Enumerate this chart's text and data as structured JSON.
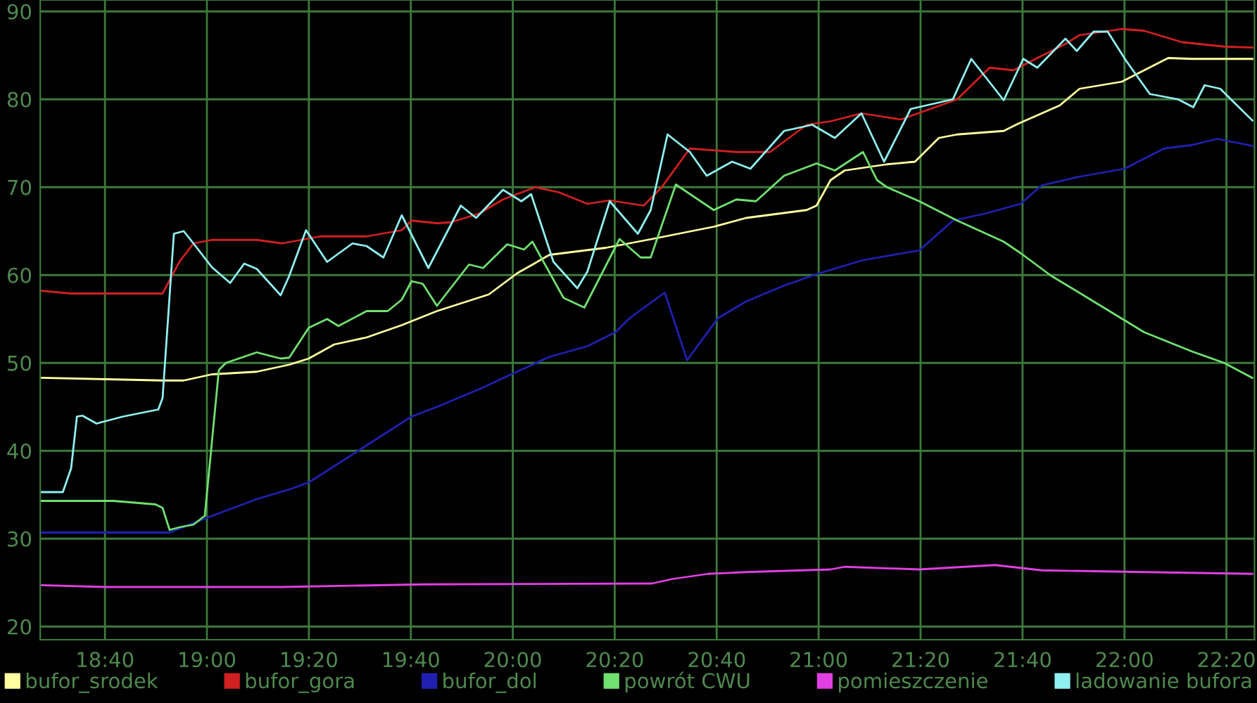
{
  "chart_data": {
    "type": "line",
    "xlim": [
      18.455,
      22.425
    ],
    "ylim": [
      18.5,
      91.3
    ],
    "xticks": [
      {
        "value": 18.6667,
        "label": "18:40"
      },
      {
        "value": 19.0,
        "label": "19:00"
      },
      {
        "value": 19.3333,
        "label": "19:20"
      },
      {
        "value": 19.6667,
        "label": "19:40"
      },
      {
        "value": 20.0,
        "label": "20:00"
      },
      {
        "value": 20.3333,
        "label": "20:20"
      },
      {
        "value": 20.6667,
        "label": "20:40"
      },
      {
        "value": 21.0,
        "label": "21:00"
      },
      {
        "value": 21.3333,
        "label": "21:20"
      },
      {
        "value": 21.6667,
        "label": "21:40"
      },
      {
        "value": 22.0,
        "label": "22:00"
      },
      {
        "value": 22.3333,
        "label": "22:20"
      }
    ],
    "yticks": [
      20,
      30,
      40,
      50,
      60,
      70,
      80,
      90
    ],
    "grid": true,
    "legend": "bottom",
    "marker": "none",
    "line_style": "solid",
    "series": [
      {
        "name": "bufor_srodek",
        "color": "#ffffa0",
        "x": [
          18.46,
          18.855,
          18.924,
          19.016,
          19.163,
          19.269,
          19.333,
          19.416,
          19.522,
          19.637,
          19.752,
          19.922,
          20.014,
          20.12,
          20.304,
          20.455,
          20.657,
          20.763,
          20.961,
          20.993,
          21.039,
          21.085,
          21.223,
          21.315,
          21.393,
          21.453,
          21.605,
          21.651,
          21.788,
          21.853,
          21.991,
          22.064,
          22.143,
          22.221,
          22.418
        ],
        "values": [
          48.3,
          48.0,
          48.0,
          48.7,
          49.0,
          49.8,
          50.5,
          52.1,
          52.9,
          54.3,
          55.9,
          57.8,
          60.2,
          62.3,
          63.1,
          64.1,
          65.5,
          66.5,
          67.4,
          67.9,
          70.8,
          71.9,
          72.6,
          72.9,
          75.6,
          76.0,
          76.4,
          77.2,
          79.3,
          81.2,
          82.0,
          83.3,
          84.7,
          84.6,
          84.6
        ]
      },
      {
        "name": "bufor_gora",
        "color": "#d02020",
        "x": [
          18.46,
          18.556,
          18.855,
          18.91,
          18.956,
          19.016,
          19.163,
          19.246,
          19.37,
          19.522,
          19.637,
          19.669,
          19.752,
          19.798,
          19.89,
          19.968,
          20.074,
          20.152,
          20.244,
          20.317,
          20.428,
          20.487,
          20.579,
          20.731,
          20.841,
          20.961,
          21.039,
          21.14,
          21.214,
          21.269,
          21.453,
          21.559,
          21.637,
          21.715,
          21.807,
          21.853,
          21.991,
          22.064,
          22.188,
          22.326,
          22.418
        ],
        "values": [
          58.2,
          57.9,
          57.9,
          61.5,
          63.6,
          64.0,
          64.0,
          63.6,
          64.4,
          64.4,
          65.1,
          66.2,
          65.9,
          66.0,
          67.0,
          68.6,
          70.0,
          69.4,
          68.1,
          68.5,
          67.9,
          70.0,
          74.4,
          74.0,
          74.0,
          77.1,
          77.5,
          78.4,
          78.0,
          77.7,
          80.0,
          83.6,
          83.3,
          84.7,
          86.3,
          87.3,
          88.0,
          87.8,
          86.5,
          86.0,
          85.9
        ]
      },
      {
        "name": "bufor_dol",
        "color": "#2020b0",
        "x": [
          18.46,
          18.878,
          19.002,
          19.163,
          19.269,
          19.333,
          19.499,
          19.669,
          19.752,
          19.89,
          19.995,
          20.12,
          20.244,
          20.336,
          20.382,
          20.497,
          20.57,
          20.671,
          20.763,
          20.887,
          20.993,
          21.145,
          21.329,
          21.439,
          21.545,
          21.66,
          21.729,
          21.853,
          22.0,
          22.129,
          22.221,
          22.304,
          22.418
        ],
        "values": [
          30.7,
          30.7,
          32.4,
          34.5,
          35.6,
          36.4,
          40.1,
          43.9,
          45.0,
          47.0,
          48.7,
          50.7,
          51.9,
          53.5,
          55.1,
          58.0,
          50.3,
          55.1,
          57.0,
          58.8,
          60.1,
          61.7,
          62.8,
          66.2,
          67.0,
          68.1,
          70.2,
          71.2,
          72.1,
          74.4,
          74.8,
          75.5,
          74.7
        ]
      },
      {
        "name": "powrót CWU",
        "color": "#70e070",
        "x": [
          18.46,
          18.694,
          18.832,
          18.855,
          18.878,
          18.91,
          18.956,
          18.993,
          19.039,
          19.062,
          19.163,
          19.241,
          19.269,
          19.333,
          19.393,
          19.43,
          19.522,
          19.591,
          19.637,
          19.669,
          19.706,
          19.752,
          19.857,
          19.903,
          19.982,
          20.037,
          20.064,
          20.166,
          20.234,
          20.349,
          20.418,
          20.451,
          20.533,
          20.657,
          20.731,
          20.795,
          20.887,
          20.993,
          21.053,
          21.145,
          21.191,
          21.223,
          21.329,
          21.453,
          21.605,
          21.66,
          21.761,
          21.913,
          22.064,
          22.221,
          22.326,
          22.418
        ],
        "values": [
          34.3,
          34.3,
          33.9,
          33.5,
          31.0,
          31.3,
          31.6,
          32.6,
          49.2,
          50.0,
          51.2,
          50.5,
          50.6,
          54.0,
          55.0,
          54.2,
          55.9,
          55.9,
          57.2,
          59.3,
          59.0,
          56.5,
          61.2,
          60.8,
          63.5,
          62.9,
          63.8,
          57.4,
          56.3,
          64.1,
          62.0,
          62.0,
          70.3,
          67.4,
          68.6,
          68.4,
          71.3,
          72.7,
          71.9,
          74.0,
          70.8,
          70.0,
          68.4,
          66.2,
          63.8,
          62.5,
          59.9,
          56.7,
          53.5,
          51.3,
          50.0,
          48.3
        ]
      },
      {
        "name": "pomieszczenie",
        "color": "#e040e0",
        "x": [
          18.46,
          18.667,
          19.246,
          19.706,
          20.455,
          20.52,
          20.639,
          20.763,
          21.039,
          21.085,
          21.329,
          21.577,
          21.729,
          22.064,
          22.418
        ],
        "values": [
          24.7,
          24.5,
          24.5,
          24.8,
          24.9,
          25.4,
          26.0,
          26.2,
          26.5,
          26.8,
          26.5,
          27.0,
          26.4,
          26.2,
          26.0
        ]
      },
      {
        "name": "ladowanie bufora",
        "color": "#90f0f0",
        "x": [
          18.46,
          18.529,
          18.556,
          18.575,
          18.593,
          18.639,
          18.726,
          18.841,
          18.855,
          18.892,
          18.924,
          18.956,
          19.016,
          19.076,
          19.122,
          19.163,
          19.241,
          19.269,
          19.324,
          19.393,
          19.476,
          19.522,
          19.577,
          19.637,
          19.724,
          19.83,
          19.88,
          19.968,
          20.028,
          20.06,
          20.133,
          20.211,
          20.244,
          20.317,
          20.409,
          20.451,
          20.506,
          20.579,
          20.634,
          20.717,
          20.777,
          20.887,
          20.979,
          21.053,
          21.14,
          21.214,
          21.301,
          21.439,
          21.499,
          21.605,
          21.669,
          21.715,
          21.807,
          21.844,
          21.899,
          21.945,
          22.005,
          22.083,
          22.175,
          22.225,
          22.262,
          22.313,
          22.418
        ],
        "values": [
          35.3,
          35.3,
          38.0,
          43.9,
          44.0,
          43.1,
          43.9,
          44.7,
          46.0,
          64.7,
          65.0,
          63.6,
          60.9,
          59.1,
          61.3,
          60.7,
          57.7,
          59.9,
          65.1,
          61.5,
          63.6,
          63.3,
          62.0,
          66.8,
          60.8,
          67.9,
          66.5,
          69.7,
          68.4,
          69.2,
          61.5,
          58.5,
          60.4,
          68.4,
          64.7,
          67.4,
          76.0,
          74.0,
          71.3,
          72.9,
          72.1,
          76.4,
          77.1,
          75.6,
          78.4,
          72.9,
          78.9,
          80.0,
          84.6,
          79.9,
          84.6,
          83.6,
          86.9,
          85.5,
          87.7,
          87.7,
          84.4,
          80.6,
          80.0,
          79.1,
          81.6,
          81.2,
          77.6
        ]
      }
    ]
  }
}
